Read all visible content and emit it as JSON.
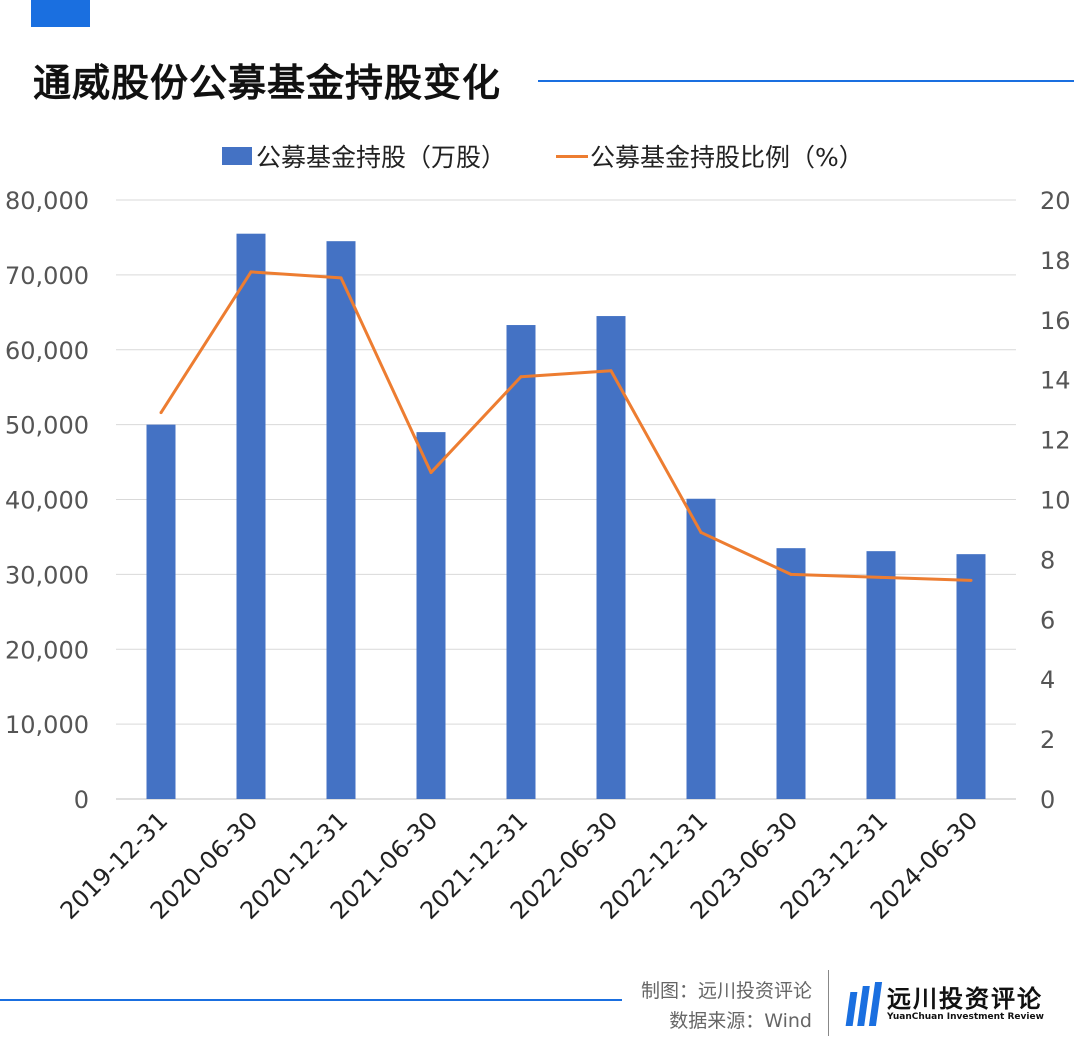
{
  "header": {
    "title": "通威股份公募基金持股变化"
  },
  "colors": {
    "accent": "#1a6fe0",
    "bar": "#4472c4",
    "line": "#ed7d31",
    "grid": "#d9d9d9"
  },
  "chart_data": {
    "type": "bar",
    "categories": [
      "2019-12-31",
      "2020-06-30",
      "2020-12-31",
      "2021-06-30",
      "2021-12-31",
      "2022-06-30",
      "2022-12-31",
      "2023-06-30",
      "2023-12-31",
      "2024-06-30"
    ],
    "series": [
      {
        "name": "公募基金持股（万股）",
        "type": "bar",
        "axis": "left",
        "values": [
          50000,
          75500,
          74500,
          49000,
          63300,
          64500,
          40100,
          33500,
          33100,
          32700
        ]
      },
      {
        "name": "公募基金持股比例（%）",
        "type": "line",
        "axis": "right",
        "values": [
          12.9,
          17.6,
          17.4,
          10.9,
          14.1,
          14.3,
          8.9,
          7.5,
          7.4,
          7.3
        ]
      }
    ],
    "y_left": {
      "min": 0,
      "max": 80000,
      "ticks": [
        "0",
        "10,000",
        "20,000",
        "30,000",
        "40,000",
        "50,000",
        "60,000",
        "70,000",
        "80,000"
      ]
    },
    "y_right": {
      "min": 0,
      "max": 20,
      "ticks": [
        "0",
        "2",
        "4",
        "6",
        "8",
        "10",
        "12",
        "14",
        "16",
        "18",
        "20"
      ]
    },
    "grid": true,
    "legend": "top-center"
  },
  "footer": {
    "made_by": "制图：远川投资评论",
    "source": "数据来源：Wind"
  },
  "logo": {
    "name": "远川投资评论",
    "subtitle": "YuanChuan Investment Review"
  }
}
